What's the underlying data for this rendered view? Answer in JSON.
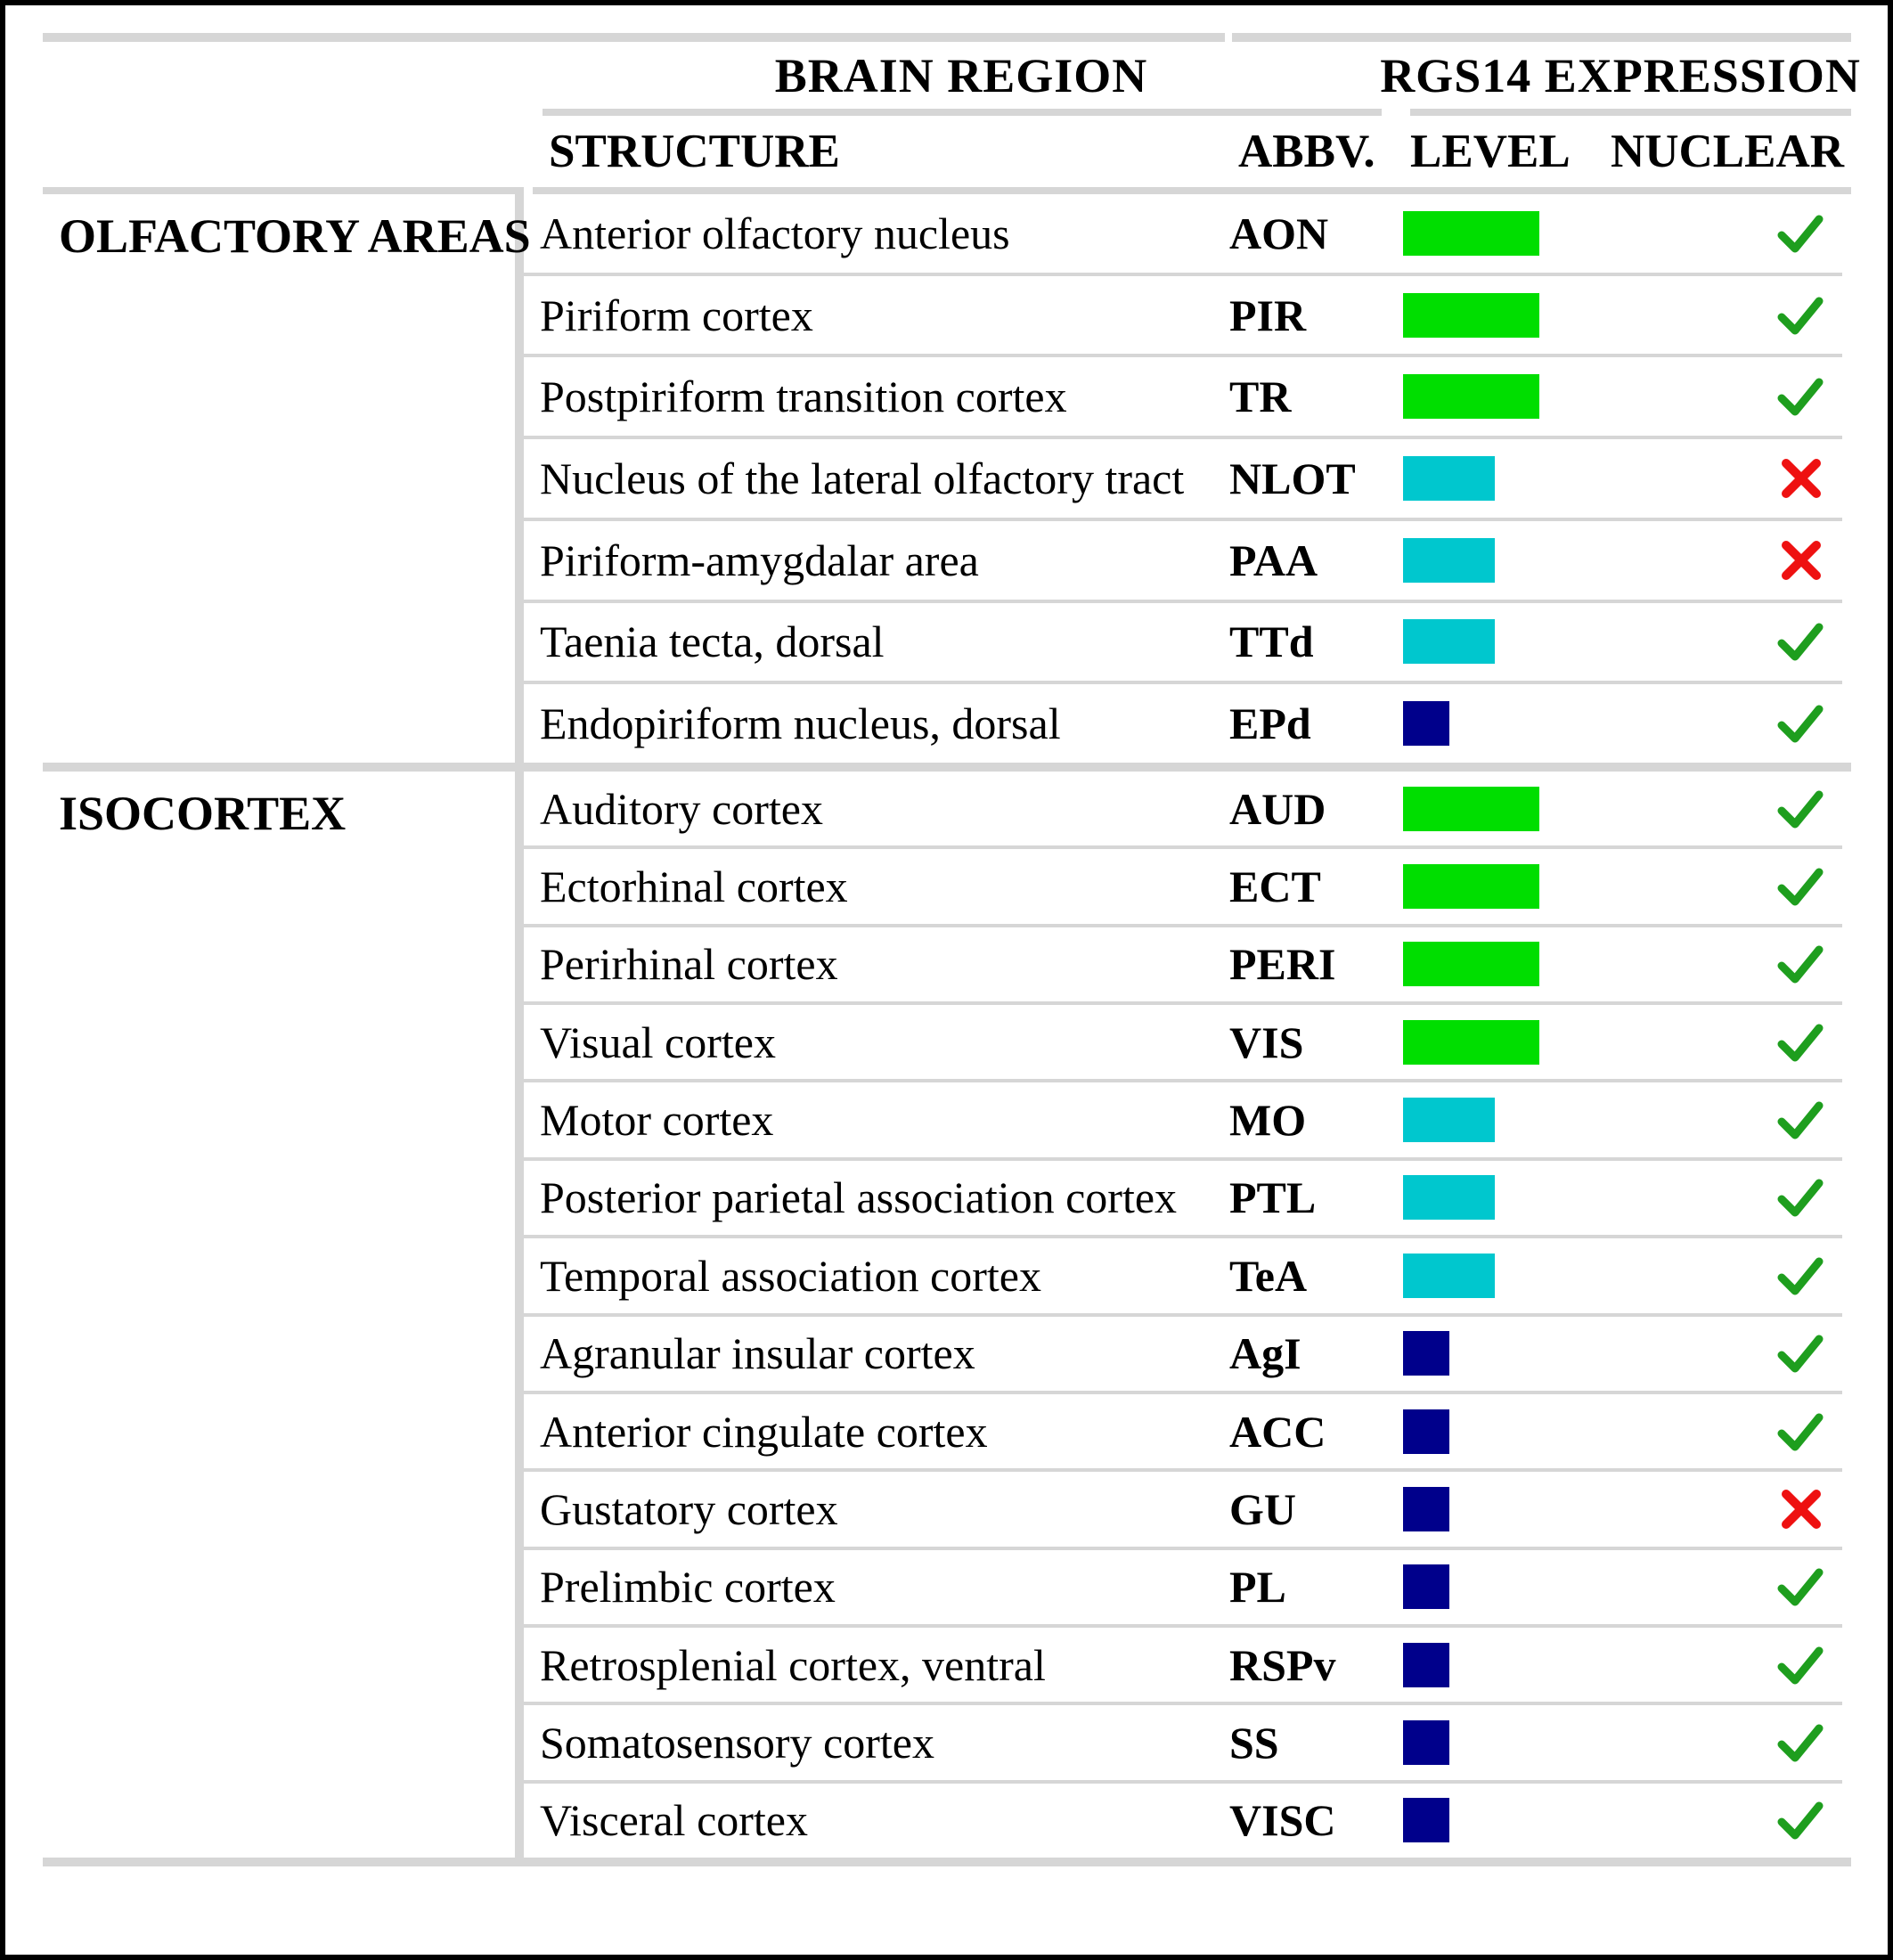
{
  "header": {
    "group1": "BRAIN REGION",
    "group2": "RGS14 EXPRESSION",
    "col_structure": "STRUCTURE",
    "col_abbv": "ABBV.",
    "col_level": "LEVEL",
    "col_nuclear": "NUCLEAR"
  },
  "legend_colors": {
    "high": "#00DE00",
    "medium": "#00C7CE",
    "low": "#00008B",
    "check": "#1E9E1E",
    "cross": "#EE1111",
    "rule_gray": "#D6D6D6"
  },
  "groups": [
    {
      "label": "OLFACTORY AREAS",
      "rows": [
        {
          "structure": "Anterior olfactory nucleus",
          "abbv": "AON",
          "level": "high",
          "nuclear": "yes"
        },
        {
          "structure": "Piriform cortex",
          "abbv": "PIR",
          "level": "high",
          "nuclear": "yes"
        },
        {
          "structure": "Postpiriform transition cortex",
          "abbv": "TR",
          "level": "high",
          "nuclear": "yes"
        },
        {
          "structure": "Nucleus of the lateral olfactory tract",
          "abbv": "NLOT",
          "level": "medium",
          "nuclear": "no"
        },
        {
          "structure": "Piriform-amygdalar area",
          "abbv": "PAA",
          "level": "medium",
          "nuclear": "no"
        },
        {
          "structure": "Taenia tecta, dorsal",
          "abbv": "TTd",
          "level": "medium",
          "nuclear": "yes"
        },
        {
          "structure": "Endopiriform nucleus, dorsal",
          "abbv": "EPd",
          "level": "low",
          "nuclear": "yes"
        }
      ]
    },
    {
      "label": "ISOCORTEX",
      "rows": [
        {
          "structure": "Auditory cortex",
          "abbv": "AUD",
          "level": "high",
          "nuclear": "yes"
        },
        {
          "structure": "Ectorhinal cortex",
          "abbv": "ECT",
          "level": "high",
          "nuclear": "yes"
        },
        {
          "structure": "Perirhinal cortex",
          "abbv": "PERI",
          "level": "high",
          "nuclear": "yes"
        },
        {
          "structure": "Visual cortex",
          "abbv": "VIS",
          "level": "high",
          "nuclear": "yes"
        },
        {
          "structure": "Motor cortex",
          "abbv": "MO",
          "level": "medium",
          "nuclear": "yes"
        },
        {
          "structure": "Posterior parietal association cortex",
          "abbv": "PTL",
          "level": "medium",
          "nuclear": "yes"
        },
        {
          "structure": "Temporal association cortex",
          "abbv": "TeA",
          "level": "medium",
          "nuclear": "yes"
        },
        {
          "structure": "Agranular insular cortex",
          "abbv": "AgI",
          "level": "low",
          "nuclear": "yes"
        },
        {
          "structure": "Anterior cingulate cortex",
          "abbv": "ACC",
          "level": "low",
          "nuclear": "yes"
        },
        {
          "structure": "Gustatory cortex",
          "abbv": "GU",
          "level": "low",
          "nuclear": "no"
        },
        {
          "structure": "Prelimbic cortex",
          "abbv": "PL",
          "level": "low",
          "nuclear": "yes"
        },
        {
          "structure": "Retrosplenial cortex, ventral",
          "abbv": "RSPv",
          "level": "low",
          "nuclear": "yes"
        },
        {
          "structure": "Somatosensory cortex",
          "abbv": "SS",
          "level": "low",
          "nuclear": "yes"
        },
        {
          "structure": "Visceral cortex",
          "abbv": "VISC",
          "level": "low",
          "nuclear": "yes"
        }
      ]
    }
  ]
}
